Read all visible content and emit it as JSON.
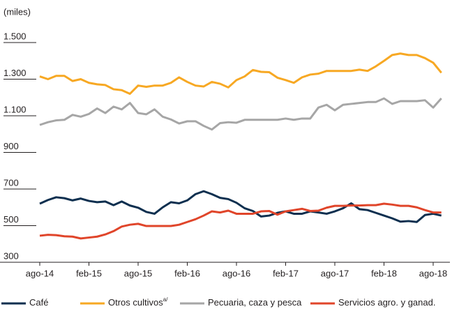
{
  "chart_data": {
    "type": "line",
    "y_label": "(miles)",
    "categories": [
      "ago-14",
      null,
      null,
      null,
      null,
      null,
      "feb-15",
      null,
      null,
      null,
      null,
      null,
      "ago-15",
      null,
      null,
      null,
      null,
      null,
      "feb-16",
      null,
      null,
      null,
      null,
      null,
      "ago-16",
      null,
      null,
      null,
      null,
      null,
      "feb-17",
      null,
      null,
      null,
      null,
      null,
      "ago-17",
      null,
      null,
      null,
      null,
      null,
      "feb-18",
      null,
      null,
      null,
      null,
      null,
      "ago-18",
      null
    ],
    "ylim": [
      300,
      1500
    ],
    "yticks": [
      300,
      500,
      700,
      900,
      {
        "value": 1100,
        "label": "1.100"
      },
      {
        "value": 1300,
        "label": "1.300"
      },
      {
        "value": 1500,
        "label": "1.500"
      }
    ],
    "series": [
      {
        "name": "Café",
        "color": "#0d2f4f",
        "values": [
          620,
          640,
          655,
          650,
          638,
          648,
          635,
          628,
          632,
          612,
          632,
          610,
          598,
          575,
          565,
          600,
          628,
          622,
          638,
          672,
          688,
          672,
          652,
          645,
          625,
          595,
          580,
          550,
          555,
          570,
          578,
          565,
          565,
          578,
          572,
          565,
          578,
          595,
          622,
          590,
          585,
          570,
          555,
          540,
          522,
          525,
          520,
          558,
          565,
          555
        ]
      },
      {
        "name": "Otros cultivos",
        "name_superscript": "a/",
        "color": "#f7a823",
        "values": [
          1315,
          1300,
          1318,
          1318,
          1290,
          1300,
          1280,
          1272,
          1268,
          1245,
          1240,
          1220,
          1265,
          1258,
          1265,
          1265,
          1280,
          1310,
          1285,
          1265,
          1260,
          1285,
          1275,
          1255,
          1295,
          1315,
          1350,
          1340,
          1338,
          1308,
          1295,
          1280,
          1310,
          1325,
          1330,
          1345,
          1345,
          1345,
          1345,
          1352,
          1345,
          1370,
          1400,
          1432,
          1440,
          1432,
          1432,
          1415,
          1390,
          1335
        ]
      },
      {
        "name": "Pecuaria, caza y pesca",
        "color": "#a6a6a6",
        "values": [
          1050,
          1065,
          1075,
          1078,
          1105,
          1095,
          1110,
          1140,
          1115,
          1150,
          1135,
          1170,
          1115,
          1108,
          1135,
          1095,
          1080,
          1058,
          1070,
          1070,
          1045,
          1025,
          1060,
          1065,
          1062,
          1078,
          1078,
          1078,
          1078,
          1078,
          1085,
          1078,
          1085,
          1085,
          1145,
          1160,
          1130,
          1160,
          1165,
          1170,
          1175,
          1175,
          1195,
          1165,
          1180,
          1180,
          1180,
          1185,
          1145,
          1195
        ]
      },
      {
        "name": "Servicios agro. y ganad.",
        "color": "#e0452a",
        "values": [
          445,
          450,
          448,
          442,
          440,
          430,
          435,
          440,
          452,
          470,
          495,
          505,
          510,
          498,
          498,
          498,
          498,
          505,
          520,
          535,
          555,
          578,
          572,
          582,
          565,
          565,
          565,
          578,
          580,
          560,
          578,
          585,
          592,
          580,
          582,
          598,
          608,
          608,
          610,
          610,
          612,
          612,
          620,
          615,
          608,
          608,
          600,
          585,
          572,
          572
        ]
      }
    ]
  }
}
